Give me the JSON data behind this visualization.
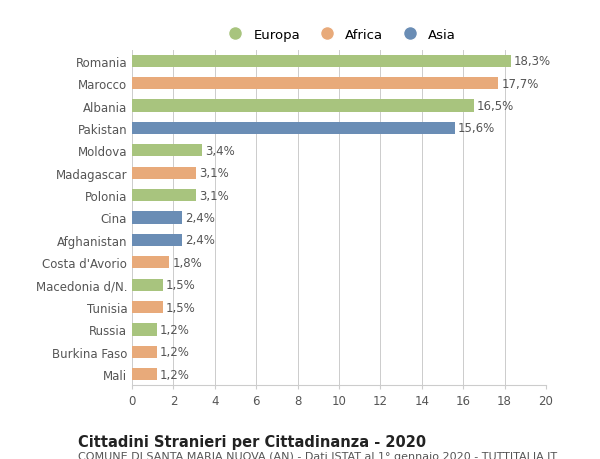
{
  "categories": [
    "Romania",
    "Marocco",
    "Albania",
    "Pakistan",
    "Moldova",
    "Madagascar",
    "Polonia",
    "Cina",
    "Afghanistan",
    "Costa d'Avorio",
    "Macedonia d/N.",
    "Tunisia",
    "Russia",
    "Burkina Faso",
    "Mali"
  ],
  "values": [
    18.3,
    17.7,
    16.5,
    15.6,
    3.4,
    3.1,
    3.1,
    2.4,
    2.4,
    1.8,
    1.5,
    1.5,
    1.2,
    1.2,
    1.2
  ],
  "labels": [
    "18,3%",
    "17,7%",
    "16,5%",
    "15,6%",
    "3,4%",
    "3,1%",
    "3,1%",
    "2,4%",
    "2,4%",
    "1,8%",
    "1,5%",
    "1,5%",
    "1,2%",
    "1,2%",
    "1,2%"
  ],
  "continents": [
    "Europa",
    "Africa",
    "Europa",
    "Asia",
    "Europa",
    "Africa",
    "Europa",
    "Asia",
    "Asia",
    "Africa",
    "Europa",
    "Africa",
    "Europa",
    "Africa",
    "Africa"
  ],
  "colors": {
    "Europa": "#a8c47e",
    "Africa": "#e8aa7a",
    "Asia": "#6a8db5"
  },
  "legend_labels": [
    "Europa",
    "Africa",
    "Asia"
  ],
  "xlim": [
    0,
    20
  ],
  "xticks": [
    0,
    2,
    4,
    6,
    8,
    10,
    12,
    14,
    16,
    18,
    20
  ],
  "title": "Cittadini Stranieri per Cittadinanza - 2020",
  "subtitle": "COMUNE DI SANTA MARIA NUOVA (AN) - Dati ISTAT al 1° gennaio 2020 - TUTTITALIA.IT",
  "background_color": "#ffffff",
  "bar_height": 0.55,
  "grid_color": "#cccccc",
  "label_fontsize": 8.5,
  "tick_fontsize": 8.5,
  "title_fontsize": 10.5,
  "subtitle_fontsize": 8.0
}
